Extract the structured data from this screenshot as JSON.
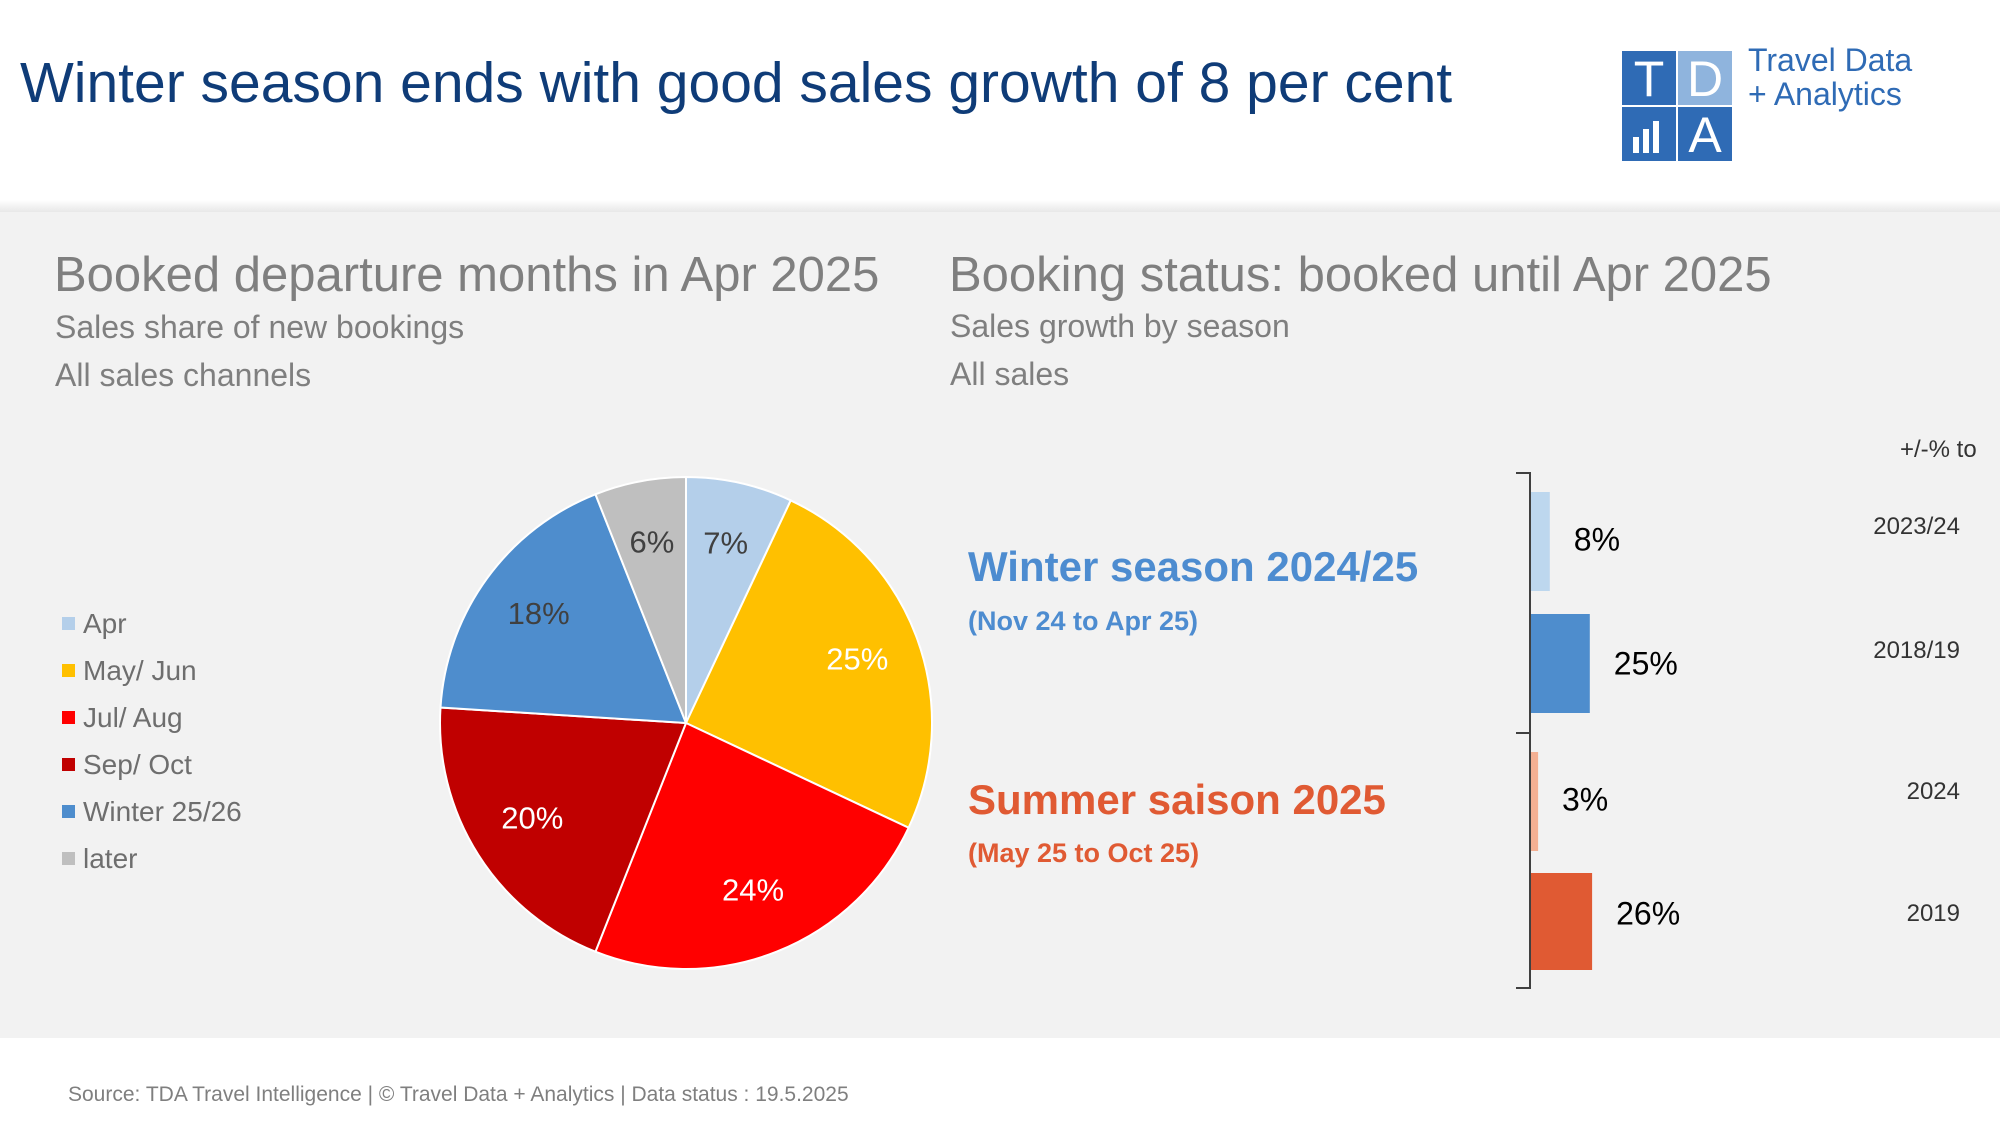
{
  "header": {
    "title": "Winter season ends with good sales growth of 8 per cent",
    "logo": {
      "letters": [
        "T",
        "D",
        "A"
      ],
      "name_line1": "Travel Data",
      "name_line2": "+ Analytics",
      "colors": {
        "dark": "#2f6bb5",
        "light": "#8fb4dd"
      }
    }
  },
  "left_section": {
    "title": "Booked departure months in Apr 2025",
    "subtitle1": "Sales share of new bookings",
    "subtitle2": "All sales channels"
  },
  "right_section": {
    "title": "Booking status: booked until Apr 2025",
    "subtitle1": "Sales growth by season",
    "subtitle2": "All sales",
    "comparison_header": "+/-% to",
    "winter": {
      "title": "Winter season 2024/25",
      "subtitle": "(Nov 24 to Apr 25)",
      "color": "#4d8cd0"
    },
    "summer": {
      "title": "Summer saison 2025",
      "subtitle": "(May 25 to Oct 25)",
      "color": "#e05a33"
    }
  },
  "chart_data": [
    {
      "type": "pie",
      "title": "Booked departure months in Apr 2025",
      "categories": [
        "Apr",
        "May/ Jun",
        "Jul/ Aug",
        "Sep/ Oct",
        "Winter 25/26",
        "later"
      ],
      "values": [
        7,
        25,
        24,
        20,
        18,
        6
      ],
      "labels": [
        "7%",
        "25%",
        "24%",
        "20%",
        "18%",
        "6%"
      ],
      "label_colors": [
        "#404040",
        "#ffffff",
        "#ffffff",
        "#ffffff",
        "#404040",
        "#404040"
      ],
      "colors": [
        "#b4cfea",
        "#ffc000",
        "#ff0000",
        "#c00000",
        "#4e8dcd",
        "#bfbfbf"
      ],
      "legend": "left"
    },
    {
      "type": "bar",
      "orientation": "horizontal",
      "title": "Booking status: booked until Apr 2025",
      "categories": [
        "2023/24",
        "2018/19",
        "2024",
        "2019"
      ],
      "values": [
        8,
        25,
        3,
        26
      ],
      "labels": [
        "8%",
        "25%",
        "3%",
        "26%"
      ],
      "groups": [
        "Winter season 2024/25",
        "Winter season 2024/25",
        "Summer saison 2025",
        "Summer saison 2025"
      ],
      "colors": [
        "#bdd7ee",
        "#4e8dcd",
        "#f4b093",
        "#e05a33"
      ]
    }
  ],
  "footer": {
    "text": "Source: TDA Travel Intelligence   |   © Travel Data + Analytics   | Data status : 19.5.2025"
  }
}
